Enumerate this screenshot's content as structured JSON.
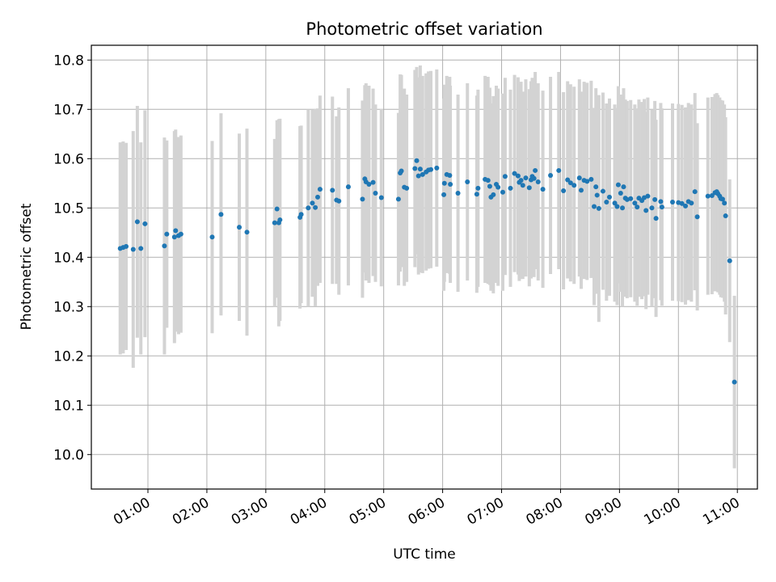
{
  "chart_data": {
    "type": "scatter",
    "title": "Photometric offset variation",
    "xlabel": "UTC time",
    "ylabel": "Photometric offset",
    "x_unit": "hours UTC",
    "xlim": [
      0.04,
      11.34
    ],
    "ylim": [
      9.93,
      10.83
    ],
    "grid": true,
    "x_ticks": [
      {
        "value": 1,
        "label": "01:00"
      },
      {
        "value": 2,
        "label": "02:00"
      },
      {
        "value": 3,
        "label": "03:00"
      },
      {
        "value": 4,
        "label": "04:00"
      },
      {
        "value": 5,
        "label": "05:00"
      },
      {
        "value": 6,
        "label": "06:00"
      },
      {
        "value": 7,
        "label": "07:00"
      },
      {
        "value": 8,
        "label": "08:00"
      },
      {
        "value": 9,
        "label": "09:00"
      },
      {
        "value": 10,
        "label": "10:00"
      },
      {
        "value": 11,
        "label": "11:00"
      }
    ],
    "y_ticks": [
      {
        "value": 10.0,
        "label": "10.0"
      },
      {
        "value": 10.1,
        "label": "10.1"
      },
      {
        "value": 10.2,
        "label": "10.2"
      },
      {
        "value": 10.3,
        "label": "10.3"
      },
      {
        "value": 10.4,
        "label": "10.4"
      },
      {
        "value": 10.5,
        "label": "10.5"
      },
      {
        "value": 10.6,
        "label": "10.6"
      },
      {
        "value": 10.7,
        "label": "10.7"
      },
      {
        "value": 10.8,
        "label": "10.8"
      }
    ],
    "colors": {
      "points": "#1f77b4",
      "errorbars": "#d3d3d3",
      "grid": "#b0b0b0"
    },
    "points": [
      {
        "x": 0.53,
        "y": 10.418,
        "err": 0.215
      },
      {
        "x": 0.58,
        "y": 10.42,
        "err": 0.215
      },
      {
        "x": 0.63,
        "y": 10.422,
        "err": 0.21
      },
      {
        "x": 0.75,
        "y": 10.416,
        "err": 0.24
      },
      {
        "x": 0.82,
        "y": 10.472,
        "err": 0.235
      },
      {
        "x": 0.88,
        "y": 10.418,
        "err": 0.215
      },
      {
        "x": 0.95,
        "y": 10.468,
        "err": 0.23
      },
      {
        "x": 1.28,
        "y": 10.423,
        "err": 0.22
      },
      {
        "x": 1.32,
        "y": 10.447,
        "err": 0.19
      },
      {
        "x": 1.45,
        "y": 10.441,
        "err": 0.215
      },
      {
        "x": 1.47,
        "y": 10.454,
        "err": 0.205
      },
      {
        "x": 1.52,
        "y": 10.444,
        "err": 0.2
      },
      {
        "x": 1.56,
        "y": 10.447,
        "err": 0.2
      },
      {
        "x": 2.09,
        "y": 10.441,
        "err": 0.195
      },
      {
        "x": 2.24,
        "y": 10.487,
        "err": 0.205
      },
      {
        "x": 2.55,
        "y": 10.461,
        "err": 0.19
      },
      {
        "x": 2.68,
        "y": 10.451,
        "err": 0.21
      },
      {
        "x": 3.15,
        "y": 10.47,
        "err": 0.17
      },
      {
        "x": 3.19,
        "y": 10.498,
        "err": 0.18
      },
      {
        "x": 3.22,
        "y": 10.47,
        "err": 0.21
      },
      {
        "x": 3.24,
        "y": 10.476,
        "err": 0.205
      },
      {
        "x": 3.58,
        "y": 10.481,
        "err": 0.185
      },
      {
        "x": 3.6,
        "y": 10.487,
        "err": 0.18
      },
      {
        "x": 3.72,
        "y": 10.5,
        "err": 0.2
      },
      {
        "x": 3.79,
        "y": 10.51,
        "err": 0.19
      },
      {
        "x": 3.84,
        "y": 10.501,
        "err": 0.2
      },
      {
        "x": 3.88,
        "y": 10.522,
        "err": 0.18
      },
      {
        "x": 3.92,
        "y": 10.538,
        "err": 0.19
      },
      {
        "x": 4.13,
        "y": 10.536,
        "err": 0.19
      },
      {
        "x": 4.2,
        "y": 10.516,
        "err": 0.17
      },
      {
        "x": 4.24,
        "y": 10.514,
        "err": 0.19
      },
      {
        "x": 4.4,
        "y": 10.543,
        "err": 0.2
      },
      {
        "x": 4.64,
        "y": 10.518,
        "err": 0.2
      },
      {
        "x": 4.68,
        "y": 10.559,
        "err": 0.19
      },
      {
        "x": 4.7,
        "y": 10.553,
        "err": 0.2
      },
      {
        "x": 4.75,
        "y": 10.548,
        "err": 0.2
      },
      {
        "x": 4.82,
        "y": 10.552,
        "err": 0.19
      },
      {
        "x": 4.86,
        "y": 10.53,
        "err": 0.18
      },
      {
        "x": 4.96,
        "y": 10.521,
        "err": 0.18
      },
      {
        "x": 5.25,
        "y": 10.518,
        "err": 0.175
      },
      {
        "x": 5.28,
        "y": 10.571,
        "err": 0.2
      },
      {
        "x": 5.3,
        "y": 10.575,
        "err": 0.195
      },
      {
        "x": 5.35,
        "y": 10.542,
        "err": 0.2
      },
      {
        "x": 5.39,
        "y": 10.54,
        "err": 0.19
      },
      {
        "x": 5.53,
        "y": 10.58,
        "err": 0.2
      },
      {
        "x": 5.56,
        "y": 10.596,
        "err": 0.19
      },
      {
        "x": 5.59,
        "y": 10.565,
        "err": 0.2
      },
      {
        "x": 5.62,
        "y": 10.579,
        "err": 0.21
      },
      {
        "x": 5.66,
        "y": 10.568,
        "err": 0.2
      },
      {
        "x": 5.72,
        "y": 10.573,
        "err": 0.2
      },
      {
        "x": 5.76,
        "y": 10.577,
        "err": 0.2
      },
      {
        "x": 5.8,
        "y": 10.578,
        "err": 0.2
      },
      {
        "x": 5.9,
        "y": 10.581,
        "err": 0.2
      },
      {
        "x": 6.02,
        "y": 10.527,
        "err": 0.195
      },
      {
        "x": 6.03,
        "y": 10.55,
        "err": 0.2
      },
      {
        "x": 6.07,
        "y": 10.568,
        "err": 0.2
      },
      {
        "x": 6.12,
        "y": 10.566,
        "err": 0.2
      },
      {
        "x": 6.13,
        "y": 10.548,
        "err": 0.2
      },
      {
        "x": 6.26,
        "y": 10.53,
        "err": 0.2
      },
      {
        "x": 6.42,
        "y": 10.553,
        "err": 0.2
      },
      {
        "x": 6.58,
        "y": 10.528,
        "err": 0.2
      },
      {
        "x": 6.6,
        "y": 10.54,
        "err": 0.2
      },
      {
        "x": 6.72,
        "y": 10.558,
        "err": 0.21
      },
      {
        "x": 6.77,
        "y": 10.556,
        "err": 0.21
      },
      {
        "x": 6.8,
        "y": 10.544,
        "err": 0.2
      },
      {
        "x": 6.82,
        "y": 10.522,
        "err": 0.19
      },
      {
        "x": 6.86,
        "y": 10.527,
        "err": 0.2
      },
      {
        "x": 6.91,
        "y": 10.548,
        "err": 0.2
      },
      {
        "x": 6.94,
        "y": 10.542,
        "err": 0.2
      },
      {
        "x": 7.02,
        "y": 10.532,
        "err": 0.2
      },
      {
        "x": 7.06,
        "y": 10.564,
        "err": 0.2
      },
      {
        "x": 7.15,
        "y": 10.54,
        "err": 0.2
      },
      {
        "x": 7.22,
        "y": 10.57,
        "err": 0.2
      },
      {
        "x": 7.28,
        "y": 10.565,
        "err": 0.2
      },
      {
        "x": 7.3,
        "y": 10.552,
        "err": 0.2
      },
      {
        "x": 7.33,
        "y": 10.556,
        "err": 0.2
      },
      {
        "x": 7.36,
        "y": 10.546,
        "err": 0.19
      },
      {
        "x": 7.41,
        "y": 10.561,
        "err": 0.2
      },
      {
        "x": 7.47,
        "y": 10.541,
        "err": 0.2
      },
      {
        "x": 7.5,
        "y": 10.557,
        "err": 0.2
      },
      {
        "x": 7.52,
        "y": 10.564,
        "err": 0.2
      },
      {
        "x": 7.55,
        "y": 10.56,
        "err": 0.2
      },
      {
        "x": 7.57,
        "y": 10.576,
        "err": 0.2
      },
      {
        "x": 7.62,
        "y": 10.553,
        "err": 0.2
      },
      {
        "x": 7.7,
        "y": 10.538,
        "err": 0.2
      },
      {
        "x": 7.83,
        "y": 10.566,
        "err": 0.2
      },
      {
        "x": 7.97,
        "y": 10.576,
        "err": 0.2
      },
      {
        "x": 8.05,
        "y": 10.535,
        "err": 0.2
      },
      {
        "x": 8.12,
        "y": 10.557,
        "err": 0.2
      },
      {
        "x": 8.17,
        "y": 10.551,
        "err": 0.2
      },
      {
        "x": 8.23,
        "y": 10.546,
        "err": 0.2
      },
      {
        "x": 8.32,
        "y": 10.561,
        "err": 0.2
      },
      {
        "x": 8.35,
        "y": 10.536,
        "err": 0.2
      },
      {
        "x": 8.4,
        "y": 10.556,
        "err": 0.2
      },
      {
        "x": 8.45,
        "y": 10.554,
        "err": 0.2
      },
      {
        "x": 8.52,
        "y": 10.558,
        "err": 0.2
      },
      {
        "x": 8.57,
        "y": 10.503,
        "err": 0.2
      },
      {
        "x": 8.6,
        "y": 10.543,
        "err": 0.2
      },
      {
        "x": 8.62,
        "y": 10.526,
        "err": 0.2
      },
      {
        "x": 8.65,
        "y": 10.499,
        "err": 0.23
      },
      {
        "x": 8.72,
        "y": 10.534,
        "err": 0.2
      },
      {
        "x": 8.78,
        "y": 10.512,
        "err": 0.2
      },
      {
        "x": 8.83,
        "y": 10.522,
        "err": 0.2
      },
      {
        "x": 8.92,
        "y": 10.51,
        "err": 0.2
      },
      {
        "x": 8.96,
        "y": 10.503,
        "err": 0.2
      },
      {
        "x": 8.98,
        "y": 10.547,
        "err": 0.2
      },
      {
        "x": 9.02,
        "y": 10.53,
        "err": 0.2
      },
      {
        "x": 9.05,
        "y": 10.5,
        "err": 0.2
      },
      {
        "x": 9.07,
        "y": 10.543,
        "err": 0.2
      },
      {
        "x": 9.1,
        "y": 10.52,
        "err": 0.2
      },
      {
        "x": 9.13,
        "y": 10.517,
        "err": 0.2
      },
      {
        "x": 9.19,
        "y": 10.519,
        "err": 0.2
      },
      {
        "x": 9.26,
        "y": 10.51,
        "err": 0.2
      },
      {
        "x": 9.3,
        "y": 10.502,
        "err": 0.2
      },
      {
        "x": 9.33,
        "y": 10.52,
        "err": 0.2
      },
      {
        "x": 9.38,
        "y": 10.515,
        "err": 0.2
      },
      {
        "x": 9.42,
        "y": 10.521,
        "err": 0.2
      },
      {
        "x": 9.45,
        "y": 10.495,
        "err": 0.2
      },
      {
        "x": 9.48,
        "y": 10.524,
        "err": 0.2
      },
      {
        "x": 9.55,
        "y": 10.5,
        "err": 0.2
      },
      {
        "x": 9.6,
        "y": 10.517,
        "err": 0.2
      },
      {
        "x": 9.62,
        "y": 10.479,
        "err": 0.2
      },
      {
        "x": 9.7,
        "y": 10.513,
        "err": 0.2
      },
      {
        "x": 9.72,
        "y": 10.502,
        "err": 0.2
      },
      {
        "x": 9.9,
        "y": 10.512,
        "err": 0.2
      },
      {
        "x": 10.0,
        "y": 10.511,
        "err": 0.2
      },
      {
        "x": 10.06,
        "y": 10.509,
        "err": 0.2
      },
      {
        "x": 10.12,
        "y": 10.504,
        "err": 0.2
      },
      {
        "x": 10.17,
        "y": 10.513,
        "err": 0.2
      },
      {
        "x": 10.22,
        "y": 10.51,
        "err": 0.2
      },
      {
        "x": 10.28,
        "y": 10.533,
        "err": 0.2
      },
      {
        "x": 10.32,
        "y": 10.482,
        "err": 0.19
      },
      {
        "x": 10.5,
        "y": 10.524,
        "err": 0.2
      },
      {
        "x": 10.57,
        "y": 10.525,
        "err": 0.2
      },
      {
        "x": 10.62,
        "y": 10.531,
        "err": 0.2
      },
      {
        "x": 10.65,
        "y": 10.533,
        "err": 0.2
      },
      {
        "x": 10.67,
        "y": 10.529,
        "err": 0.2
      },
      {
        "x": 10.7,
        "y": 10.524,
        "err": 0.2
      },
      {
        "x": 10.72,
        "y": 10.519,
        "err": 0.2
      },
      {
        "x": 10.75,
        "y": 10.518,
        "err": 0.2
      },
      {
        "x": 10.78,
        "y": 10.51,
        "err": 0.2
      },
      {
        "x": 10.8,
        "y": 10.484,
        "err": 0.2
      },
      {
        "x": 10.87,
        "y": 10.393,
        "err": 0.165
      },
      {
        "x": 10.95,
        "y": 10.147,
        "err": 0.175
      }
    ]
  }
}
